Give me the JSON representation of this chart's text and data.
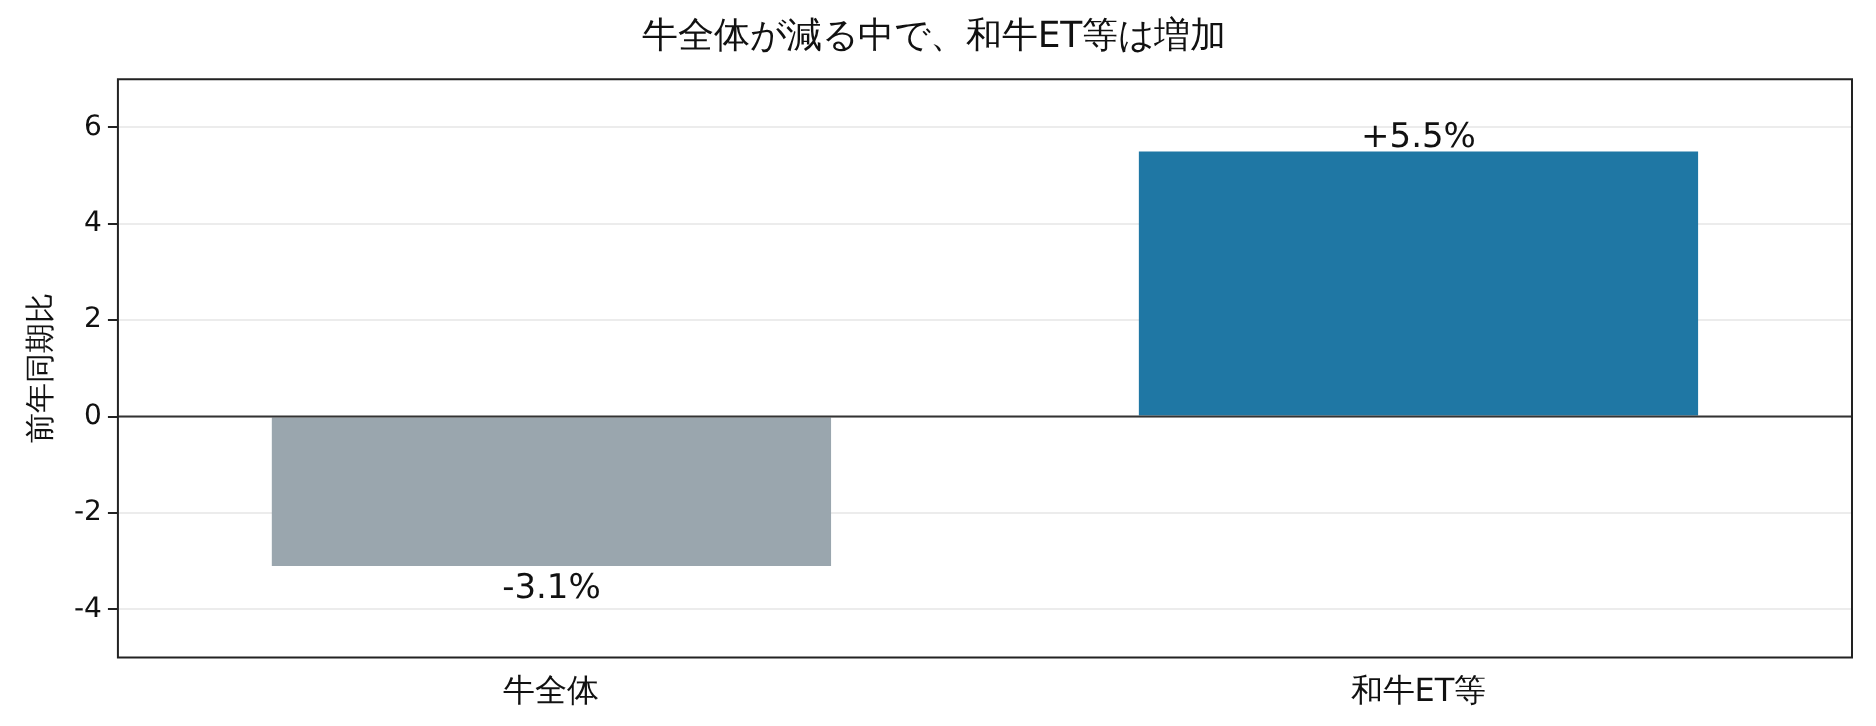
{
  "chart_data": {
    "type": "bar",
    "title": "牛全体が減る中で、和牛ET等は増加",
    "ylabel": "前年同期比",
    "categories": [
      "牛全体",
      "和牛ET等"
    ],
    "values": [
      -3.1,
      5.5
    ],
    "colors": [
      "#9aa6ae",
      "#1f77a4"
    ],
    "value_labels": [
      "-3.1%",
      "+5.5%"
    ],
    "ylim": [
      -5,
      7
    ],
    "yticks": [
      -4,
      -2,
      0,
      2,
      4,
      6
    ],
    "ref_lines": [
      {
        "axis": "y",
        "value": 0,
        "color": "#333333"
      }
    ],
    "grid": "y",
    "legend": false
  }
}
